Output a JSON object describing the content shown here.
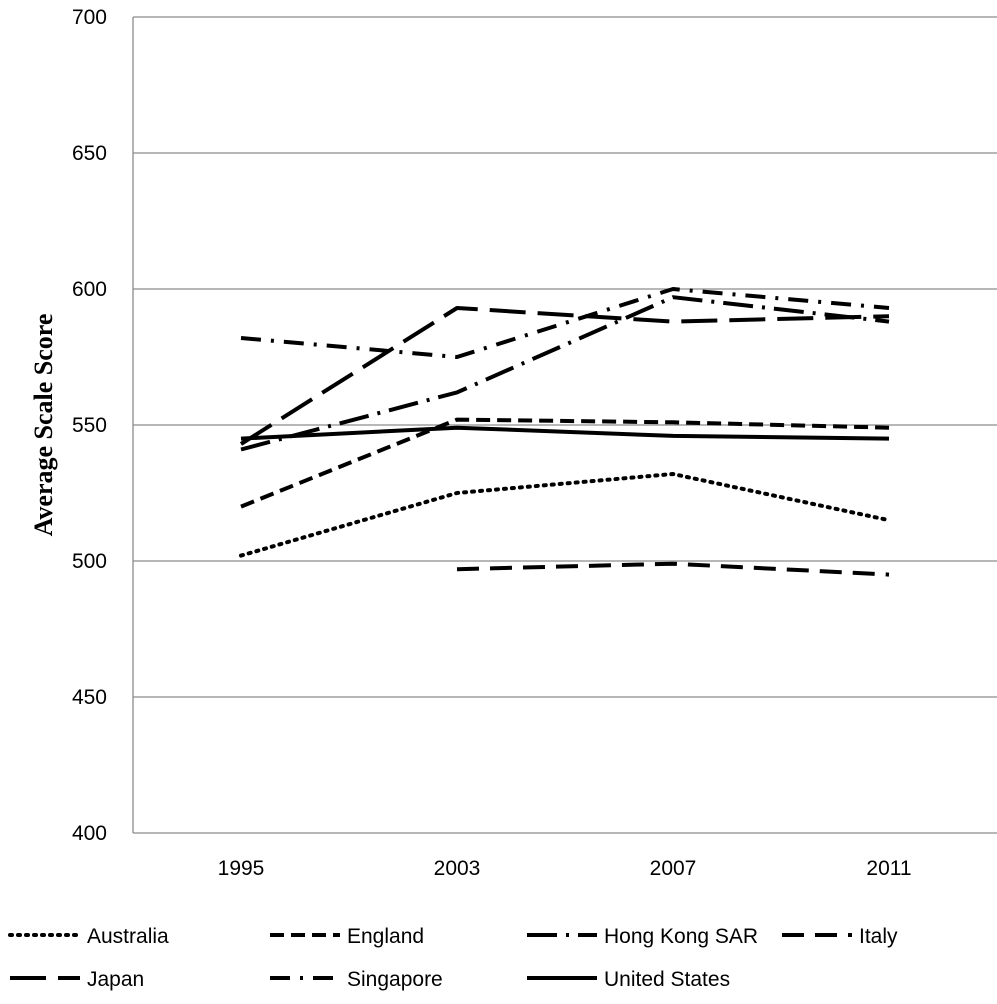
{
  "chart_data": {
    "type": "line",
    "title": "",
    "xlabel": "",
    "ylabel": "Average Scale Score",
    "categories": [
      "1995",
      "2003",
      "2007",
      "2011"
    ],
    "ylim": [
      400,
      700
    ],
    "yticks": [
      400,
      450,
      500,
      550,
      600,
      650,
      700
    ],
    "grid": true,
    "legend_position": "bottom",
    "series": [
      {
        "name": "Australia",
        "dash": "dotted",
        "values": [
          502,
          525,
          532,
          515
        ]
      },
      {
        "name": "England",
        "dash": "short-dash",
        "values": [
          520,
          552,
          551,
          549
        ]
      },
      {
        "name": "Hong Kong SAR",
        "dash": "long-dash-dot",
        "values": [
          541,
          562,
          597,
          588
        ]
      },
      {
        "name": "Italy",
        "dash": "medium-dash",
        "values": [
          null,
          497,
          499,
          495
        ]
      },
      {
        "name": "Japan",
        "dash": "long-dash",
        "values": [
          543,
          593,
          588,
          590
        ]
      },
      {
        "name": "Singapore",
        "dash": "dash-dot",
        "values": [
          582,
          575,
          600,
          593
        ]
      },
      {
        "name": "United States",
        "dash": "solid",
        "values": [
          545,
          549,
          546,
          545
        ]
      }
    ]
  }
}
